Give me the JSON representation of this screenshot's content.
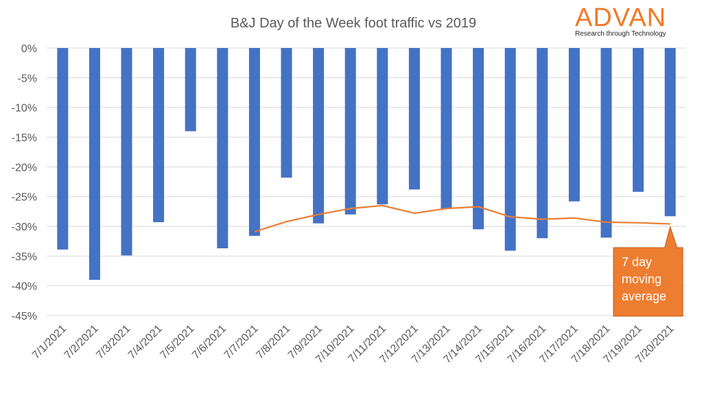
{
  "logo": {
    "word": "ADVAN",
    "tagline": "Research through Technology"
  },
  "chart_data": {
    "type": "bar",
    "title": "B&J Day of the Week foot traffic vs 2019",
    "categories": [
      "7/1/2021",
      "7/2/2021",
      "7/3/2021",
      "7/4/2021",
      "7/5/2021",
      "7/6/2021",
      "7/7/2021",
      "7/8/2021",
      "7/9/2021",
      "7/10/2021",
      "7/11/2021",
      "7/12/2021",
      "7/13/2021",
      "7/14/2021",
      "7/15/2021",
      "7/16/2021",
      "7/17/2021",
      "7/18/2021",
      "7/19/2021",
      "7/20/2021"
    ],
    "series": [
      {
        "type": "bar",
        "color": "#4472c4",
        "values": [
          -33.9,
          -39.0,
          -34.9,
          -29.3,
          -14.0,
          -33.7,
          -31.6,
          -21.8,
          -29.5,
          -28.0,
          -26.3,
          -23.8,
          -27.0,
          -30.5,
          -34.1,
          -32.0,
          -25.8,
          -31.9,
          -24.2,
          -28.3
        ]
      },
      {
        "type": "line",
        "name": "7 day moving average",
        "color": "#ed7d31",
        "values": [
          null,
          null,
          null,
          null,
          null,
          null,
          -30.9,
          -29.2,
          -28.0,
          -27.0,
          -26.5,
          -27.8,
          -27.0,
          -26.7,
          -28.4,
          -28.8,
          -28.6,
          -29.3,
          -29.4,
          -29.6
        ]
      }
    ],
    "y_ticks": [
      "0%",
      "-5%",
      "-10%",
      "-15%",
      "-20%",
      "-25%",
      "-30%",
      "-35%",
      "-40%",
      "-45%"
    ],
    "ylim": [
      -45,
      0
    ],
    "grid": true,
    "annotation": {
      "lines": [
        "7 day",
        "moving",
        "average"
      ],
      "color": "#ed7d31",
      "text_color": "#ffffff"
    }
  }
}
